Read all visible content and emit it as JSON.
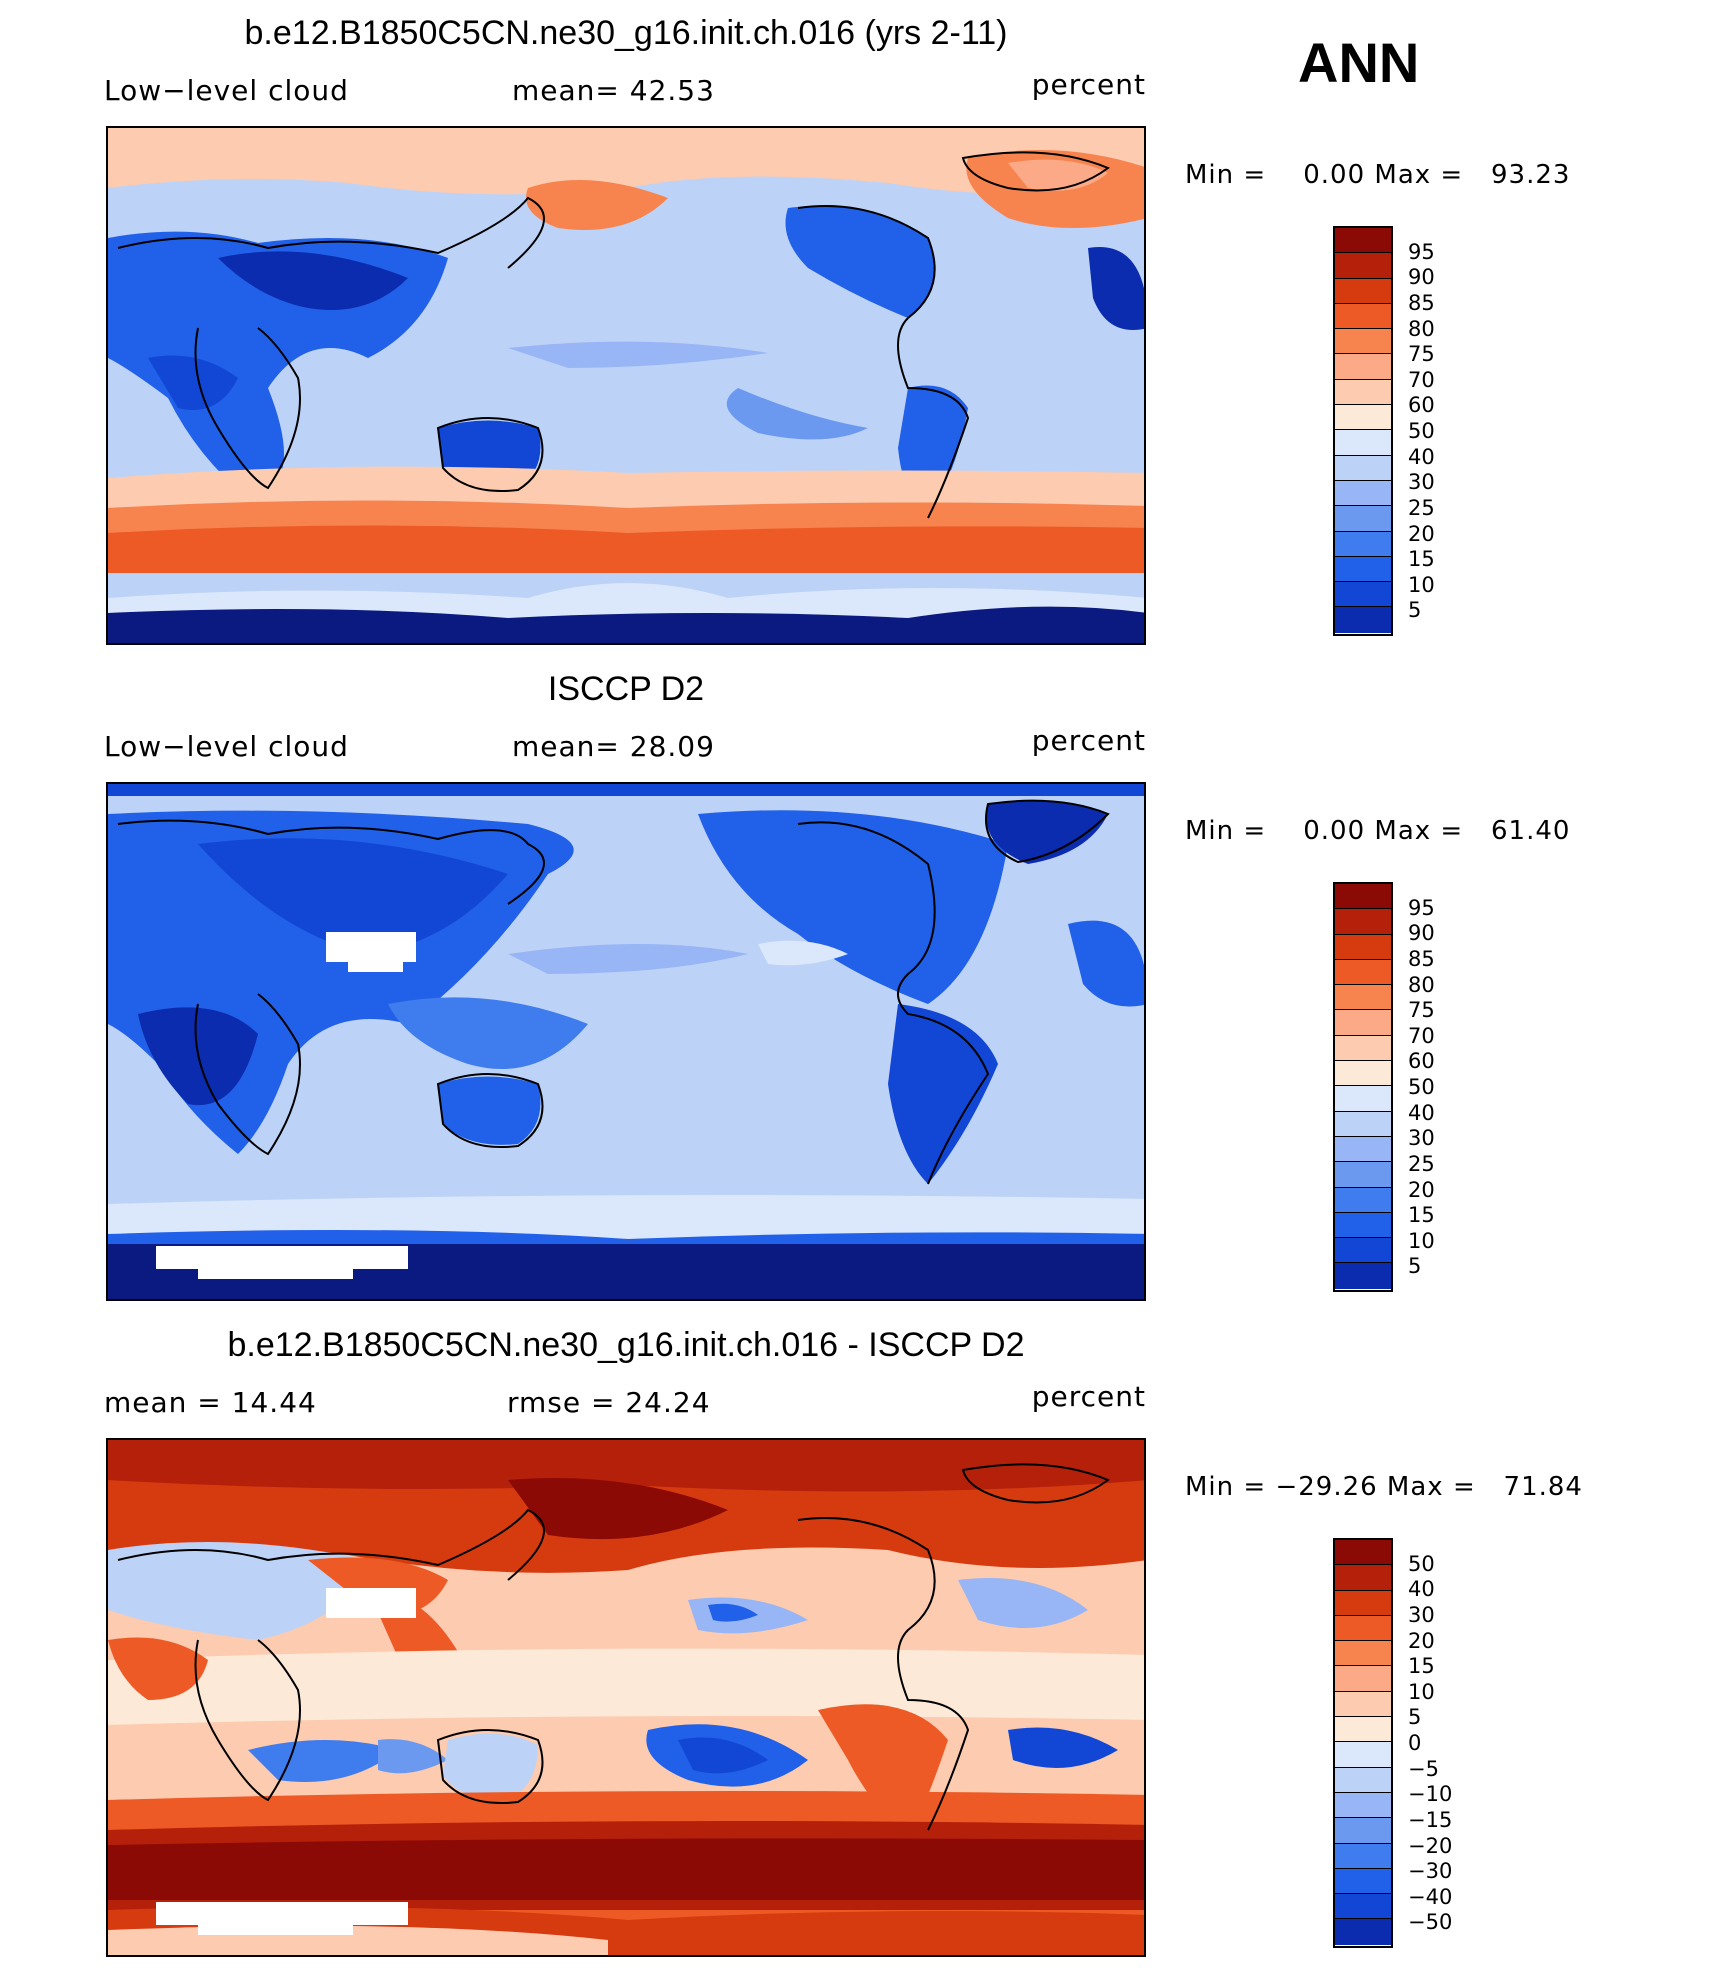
{
  "season": "ANN",
  "panels": [
    {
      "title": "b.e12.B1850C5CN.ne30_g16.init.ch.016 (yrs 2-11)",
      "left": "Low−level cloud",
      "center": "mean=  42.53",
      "units": "percent",
      "minmax": "Min =    0.00 Max =   93.23",
      "cbar_labels": [
        "95",
        "90",
        "85",
        "80",
        "75",
        "70",
        "60",
        "50",
        "40",
        "30",
        "25",
        "20",
        "15",
        "10",
        "5"
      ]
    },
    {
      "title": "ISCCP D2",
      "left": "Low−level cloud",
      "center": "mean=  28.09",
      "units": "percent",
      "minmax": "Min =    0.00 Max =   61.40",
      "cbar_labels": [
        "95",
        "90",
        "85",
        "80",
        "75",
        "70",
        "60",
        "50",
        "40",
        "30",
        "25",
        "20",
        "15",
        "10",
        "5"
      ]
    },
    {
      "title": "b.e12.B1850C5CN.ne30_g16.init.ch.016 - ISCCP D2",
      "left": "mean =  14.44",
      "center": "rmse =  24.24",
      "units": "percent",
      "minmax": "Min = −29.26 Max =   71.84",
      "cbar_labels": [
        "50",
        "40",
        "30",
        "20",
        "15",
        "10",
        "5",
        "0",
        "−5",
        "−10",
        "−15",
        "−20",
        "−30",
        "−40",
        "−50"
      ]
    }
  ],
  "colors": {
    "scale": [
      "#0a1a80",
      "#0b2cae",
      "#1247d6",
      "#2160e8",
      "#3f7ced",
      "#6b99f0",
      "#98b6f5",
      "#bcd2f7",
      "#dbe7fb",
      "#fde9d8",
      "#fccbb0",
      "#fba986",
      "#f7844f",
      "#ee5a25",
      "#d63a0f",
      "#b5200b",
      "#8c0a06"
    ]
  }
}
